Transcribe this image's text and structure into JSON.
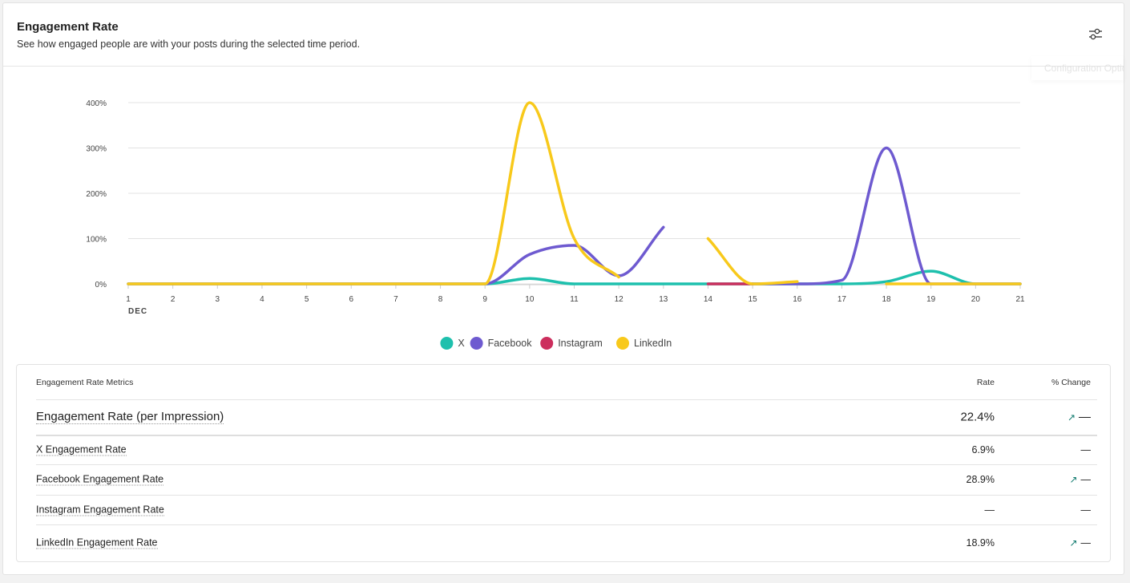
{
  "header": {
    "title": "Engagement Rate",
    "subtitle": "See how engaged people are with your posts during the selected time period.",
    "tooltip": "Configuration Options"
  },
  "chart_data": {
    "type": "line",
    "x": [
      1,
      2,
      3,
      4,
      5,
      6,
      7,
      8,
      9,
      10,
      11,
      12,
      13,
      14,
      15,
      16,
      17,
      18,
      19,
      20,
      21
    ],
    "xlim": [
      1,
      21
    ],
    "xticks": [
      1,
      2,
      3,
      4,
      5,
      6,
      7,
      8,
      9,
      10,
      11,
      12,
      13,
      14,
      15,
      16,
      17,
      18,
      19,
      20,
      21
    ],
    "x_month_label": "DEC",
    "ylim": [
      0,
      400
    ],
    "yticks": [
      {
        "value": 0,
        "label": "0%"
      },
      {
        "value": 100,
        "label": "100%"
      },
      {
        "value": 200,
        "label": "200%"
      },
      {
        "value": 300,
        "label": "300%"
      },
      {
        "value": 400,
        "label": "400%"
      }
    ],
    "grid": true,
    "legend": "bottom",
    "series": [
      {
        "name": "X",
        "color": "#1ec0ad",
        "values": [
          0,
          0,
          0,
          0,
          0,
          0,
          0,
          0,
          0,
          12,
          0,
          0,
          0,
          0,
          0,
          0,
          0,
          5,
          28,
          0,
          0
        ]
      },
      {
        "name": "Facebook",
        "color": "#6e5ad0",
        "values": [
          0,
          0,
          0,
          0,
          0,
          0,
          0,
          0,
          0,
          65,
          85,
          18,
          125,
          null,
          0,
          0,
          8,
          300,
          0,
          0,
          0
        ]
      },
      {
        "name": "Instagram",
        "color": "#cc2e5d",
        "values": [
          null,
          null,
          null,
          null,
          null,
          null,
          null,
          null,
          null,
          null,
          null,
          null,
          null,
          0,
          0,
          null,
          null,
          null,
          null,
          null,
          null
        ]
      },
      {
        "name": "LinkedIn",
        "color": "#f8c91b",
        "values": [
          0,
          0,
          0,
          0,
          0,
          0,
          0,
          0,
          0,
          400,
          100,
          15,
          null,
          100,
          0,
          5,
          null,
          0,
          0,
          0,
          0
        ]
      }
    ]
  },
  "table": {
    "columns": [
      "Engagement Rate Metrics",
      "Rate",
      "% Change"
    ],
    "rows": [
      {
        "label": "Engagement Rate (per Impression)",
        "rate": "22.4%",
        "change": "—",
        "trend_up": true
      },
      {
        "label": "X Engagement Rate",
        "rate": "6.9%",
        "change": "—",
        "trend_up": false
      },
      {
        "label": "Facebook Engagement Rate",
        "rate": "28.9%",
        "change": "—",
        "trend_up": true
      },
      {
        "label": "Instagram Engagement Rate",
        "rate": "—",
        "change": "—",
        "trend_up": false
      },
      {
        "label": "LinkedIn Engagement Rate",
        "rate": "18.9%",
        "change": "—",
        "trend_up": true
      }
    ]
  }
}
